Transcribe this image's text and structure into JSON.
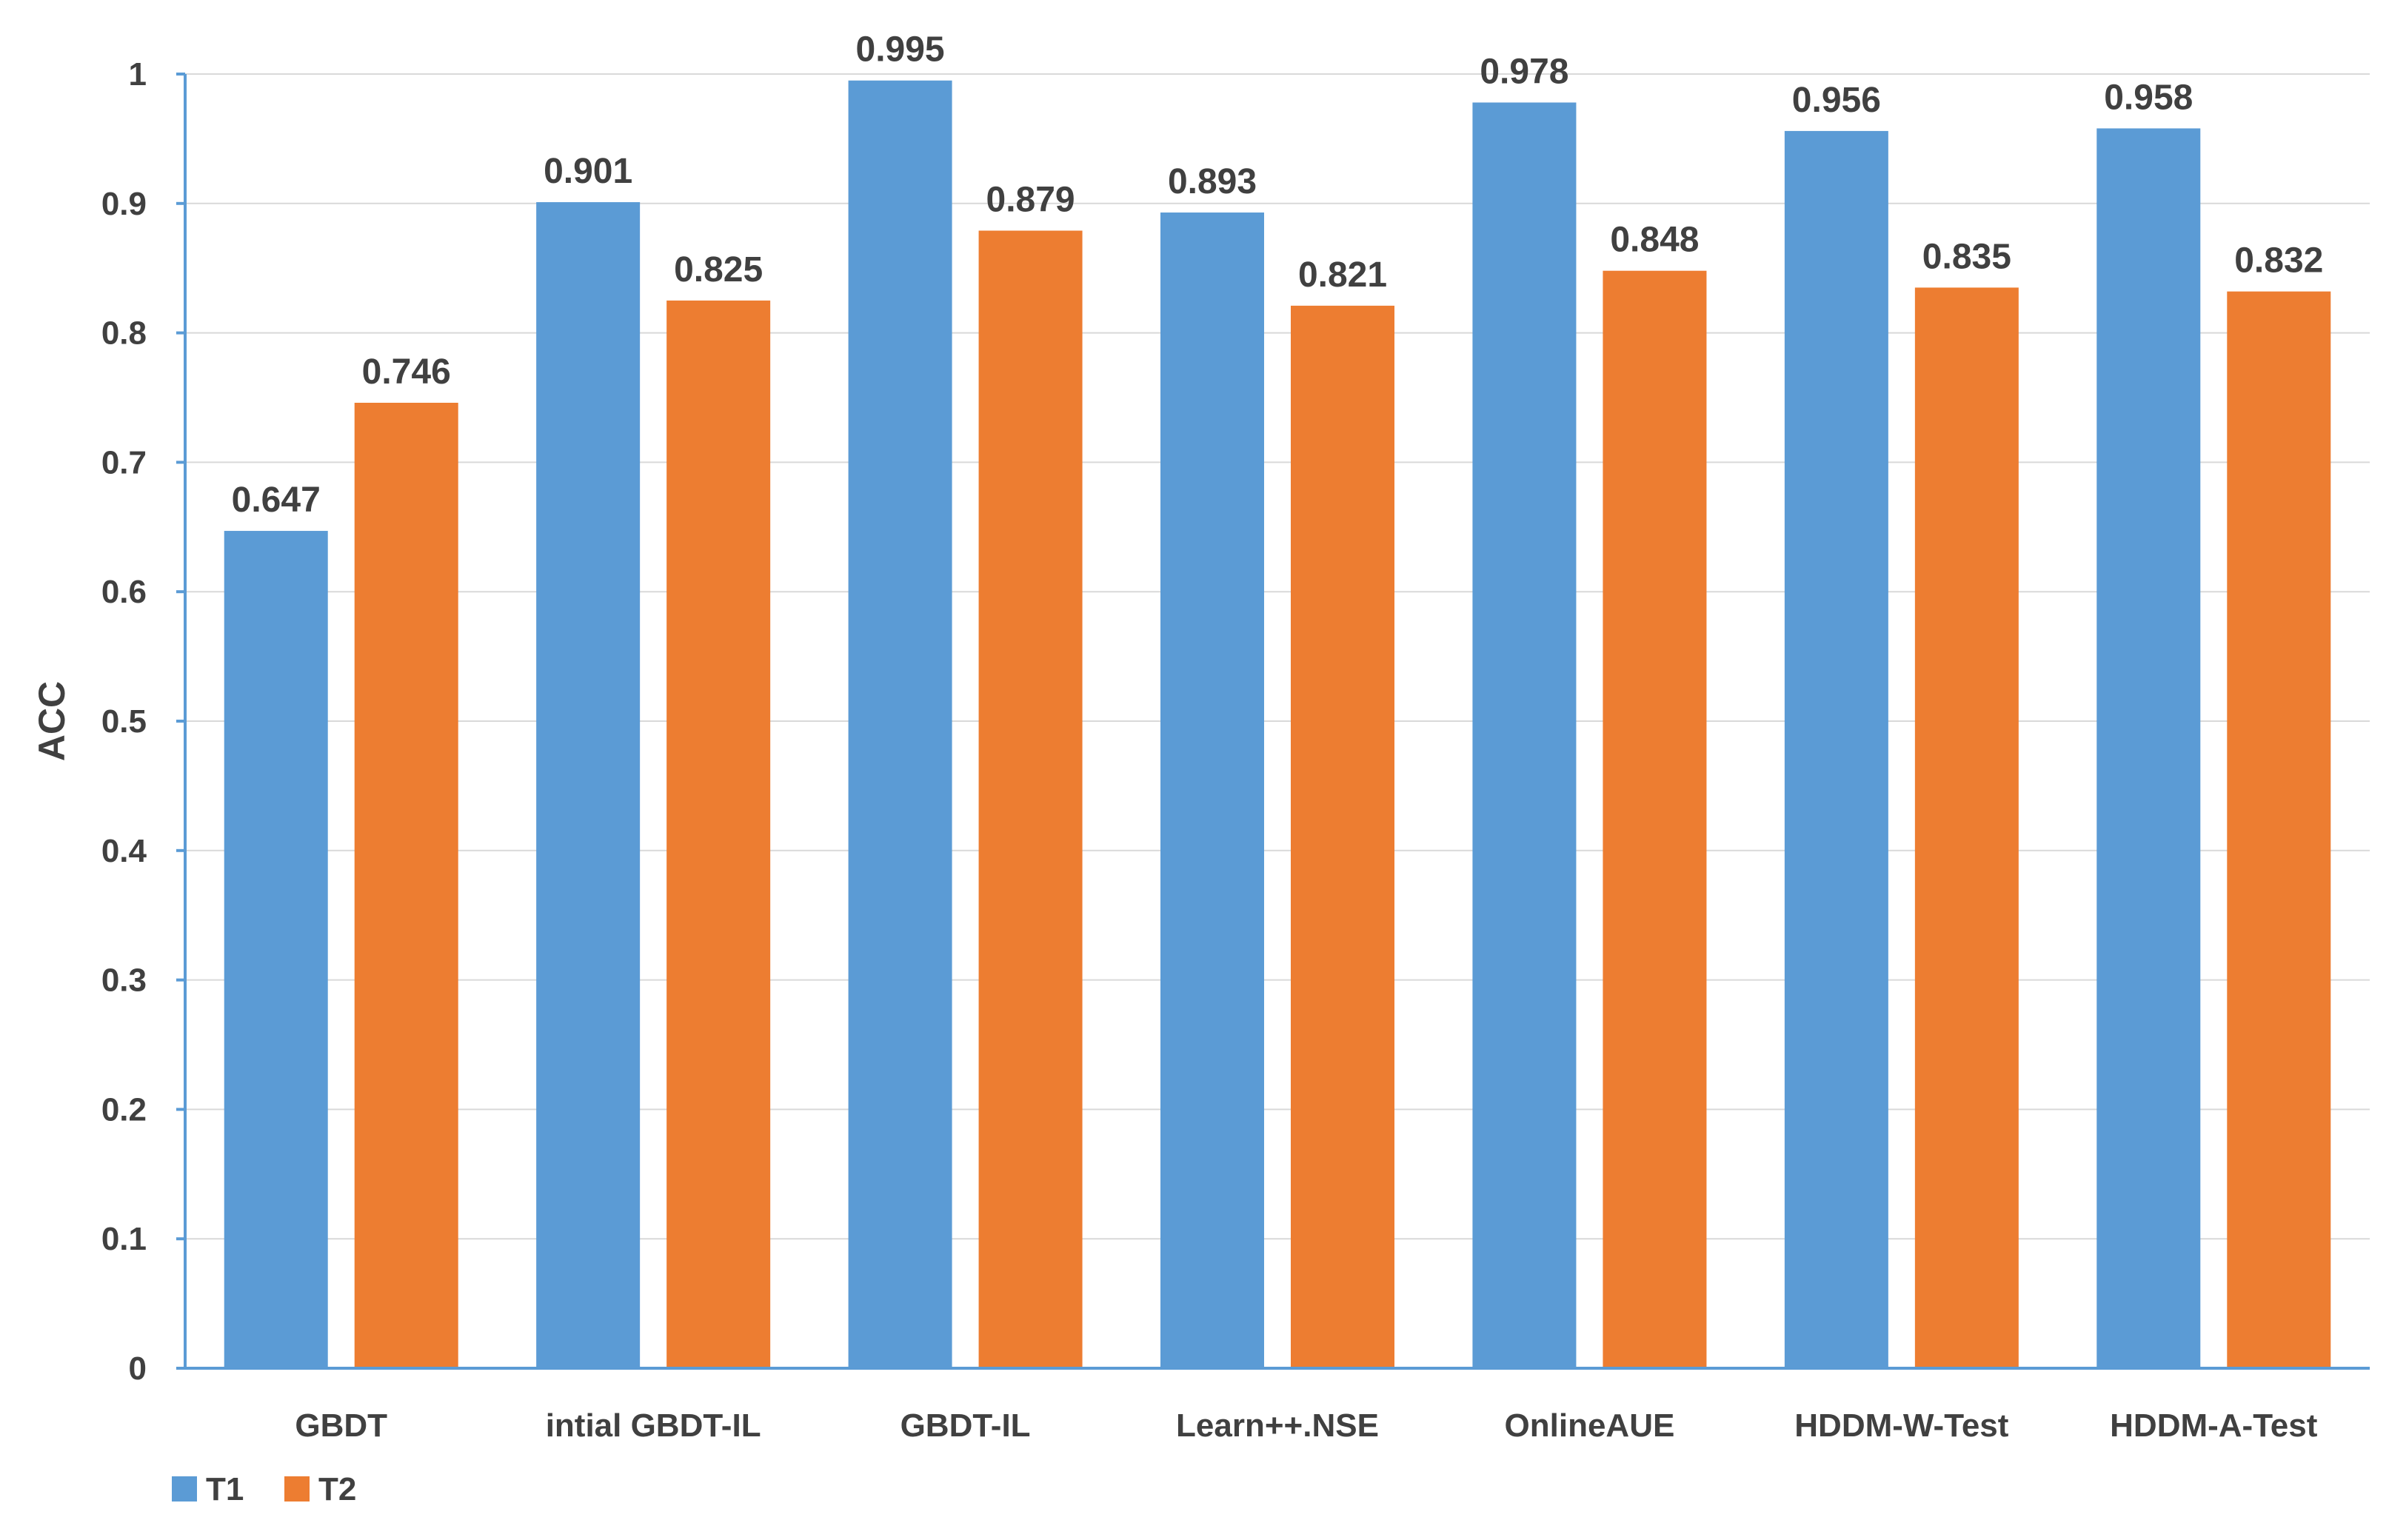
{
  "chart_data": {
    "type": "bar",
    "title": "",
    "xlabel": "",
    "ylabel": "ACC",
    "ylim": [
      0,
      1
    ],
    "yticks": [
      "0",
      "0.1",
      "0.2",
      "0.3",
      "0.4",
      "0.5",
      "0.6",
      "0.7",
      "0.8",
      "0.9",
      "1"
    ],
    "grid": true,
    "legend_position": "bottom-left",
    "categories": [
      "GBDT",
      "intial GBDT-IL",
      "GBDT-IL",
      "Learn++.NSE",
      "OnlineAUE",
      "HDDM-W-Test",
      "HDDM-A-Test"
    ],
    "series": [
      {
        "name": "T1",
        "color": "#5B9BD5",
        "values": [
          0.647,
          0.901,
          0.995,
          0.893,
          0.978,
          0.956,
          0.958
        ],
        "labels": [
          "0.647",
          "0.901",
          "0.995",
          "0.893",
          "0.978",
          "0.956",
          "0.958"
        ]
      },
      {
        "name": "T2",
        "color": "#ED7D31",
        "values": [
          0.746,
          0.825,
          0.879,
          0.821,
          0.848,
          0.835,
          0.832
        ],
        "labels": [
          "0.746",
          "0.825",
          "0.879",
          "0.821",
          "0.848",
          "0.835",
          "0.832"
        ]
      }
    ]
  }
}
